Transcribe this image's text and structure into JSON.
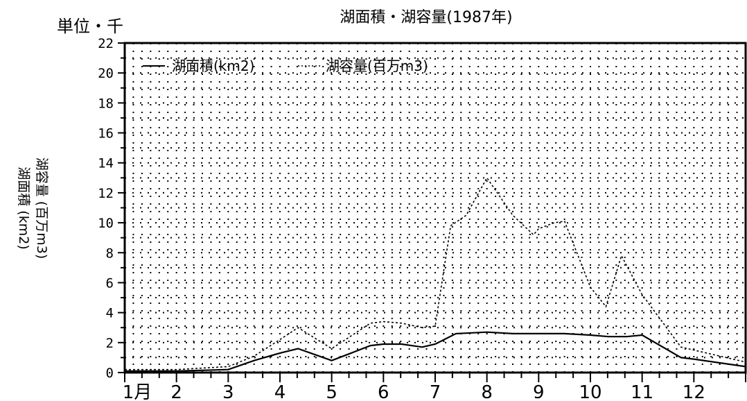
{
  "chart_data": {
    "type": "line",
    "title": "湖面積・湖容量(1987年)",
    "unit_label": "単位・千",
    "ylabel_line1": "湖面積 (km2)",
    "ylabel_line2": "湖容量 (百万m3)",
    "ylim": [
      0,
      22
    ],
    "yticks": [
      "0",
      "2",
      "4",
      "6",
      "8",
      "10",
      "12",
      "14",
      "16",
      "18",
      "20",
      "22"
    ],
    "month_labels": [
      "1月",
      "2",
      "3",
      "4",
      "5",
      "6",
      "7",
      "8",
      "9",
      "10",
      "11",
      "12"
    ],
    "x_range": [
      1,
      13
    ],
    "grid": true,
    "legend_position": "top-left",
    "series": [
      {
        "name": "湖面積(km2)",
        "style": "solid",
        "color": "#000000",
        "points": [
          [
            1,
            0.1
          ],
          [
            1.5,
            0.1
          ],
          [
            2,
            0.1
          ],
          [
            3,
            0.2
          ],
          [
            3.5,
            0.8
          ],
          [
            4,
            1.3
          ],
          [
            4.35,
            1.6
          ],
          [
            5,
            0.8
          ],
          [
            5.75,
            1.8
          ],
          [
            6,
            1.9
          ],
          [
            6.35,
            1.9
          ],
          [
            6.75,
            1.7
          ],
          [
            7,
            1.9
          ],
          [
            7.4,
            2.6
          ],
          [
            8,
            2.7
          ],
          [
            8.5,
            2.6
          ],
          [
            9,
            2.6
          ],
          [
            9.5,
            2.6
          ],
          [
            10,
            2.5
          ],
          [
            10.35,
            2.4
          ],
          [
            10.7,
            2.4
          ],
          [
            11,
            2.5
          ],
          [
            11.75,
            1.0
          ],
          [
            12,
            0.9
          ],
          [
            13,
            0.4
          ]
        ]
      },
      {
        "name": "湖容量(百万m3)",
        "style": "dashed",
        "color": "#000000",
        "points": [
          [
            1,
            0.2
          ],
          [
            1.5,
            0.2
          ],
          [
            2,
            0.2
          ],
          [
            3,
            0.4
          ],
          [
            3.5,
            1.1
          ],
          [
            4,
            2.2
          ],
          [
            4.35,
            3.0
          ],
          [
            5,
            1.6
          ],
          [
            5.75,
            3.3
          ],
          [
            6,
            3.4
          ],
          [
            6.35,
            3.3
          ],
          [
            6.75,
            3.0
          ],
          [
            7,
            3.1
          ],
          [
            7.3,
            9.8
          ],
          [
            7.6,
            10.5
          ],
          [
            8,
            13.0
          ],
          [
            8.5,
            10.5
          ],
          [
            8.9,
            9.2
          ],
          [
            9,
            9.6
          ],
          [
            9.3,
            10.0
          ],
          [
            9.5,
            10.1
          ],
          [
            10,
            5.7
          ],
          [
            10.3,
            4.4
          ],
          [
            10.6,
            7.8
          ],
          [
            11,
            5.2
          ],
          [
            11.75,
            1.7
          ],
          [
            12,
            1.5
          ],
          [
            13,
            0.7
          ]
        ]
      }
    ]
  }
}
